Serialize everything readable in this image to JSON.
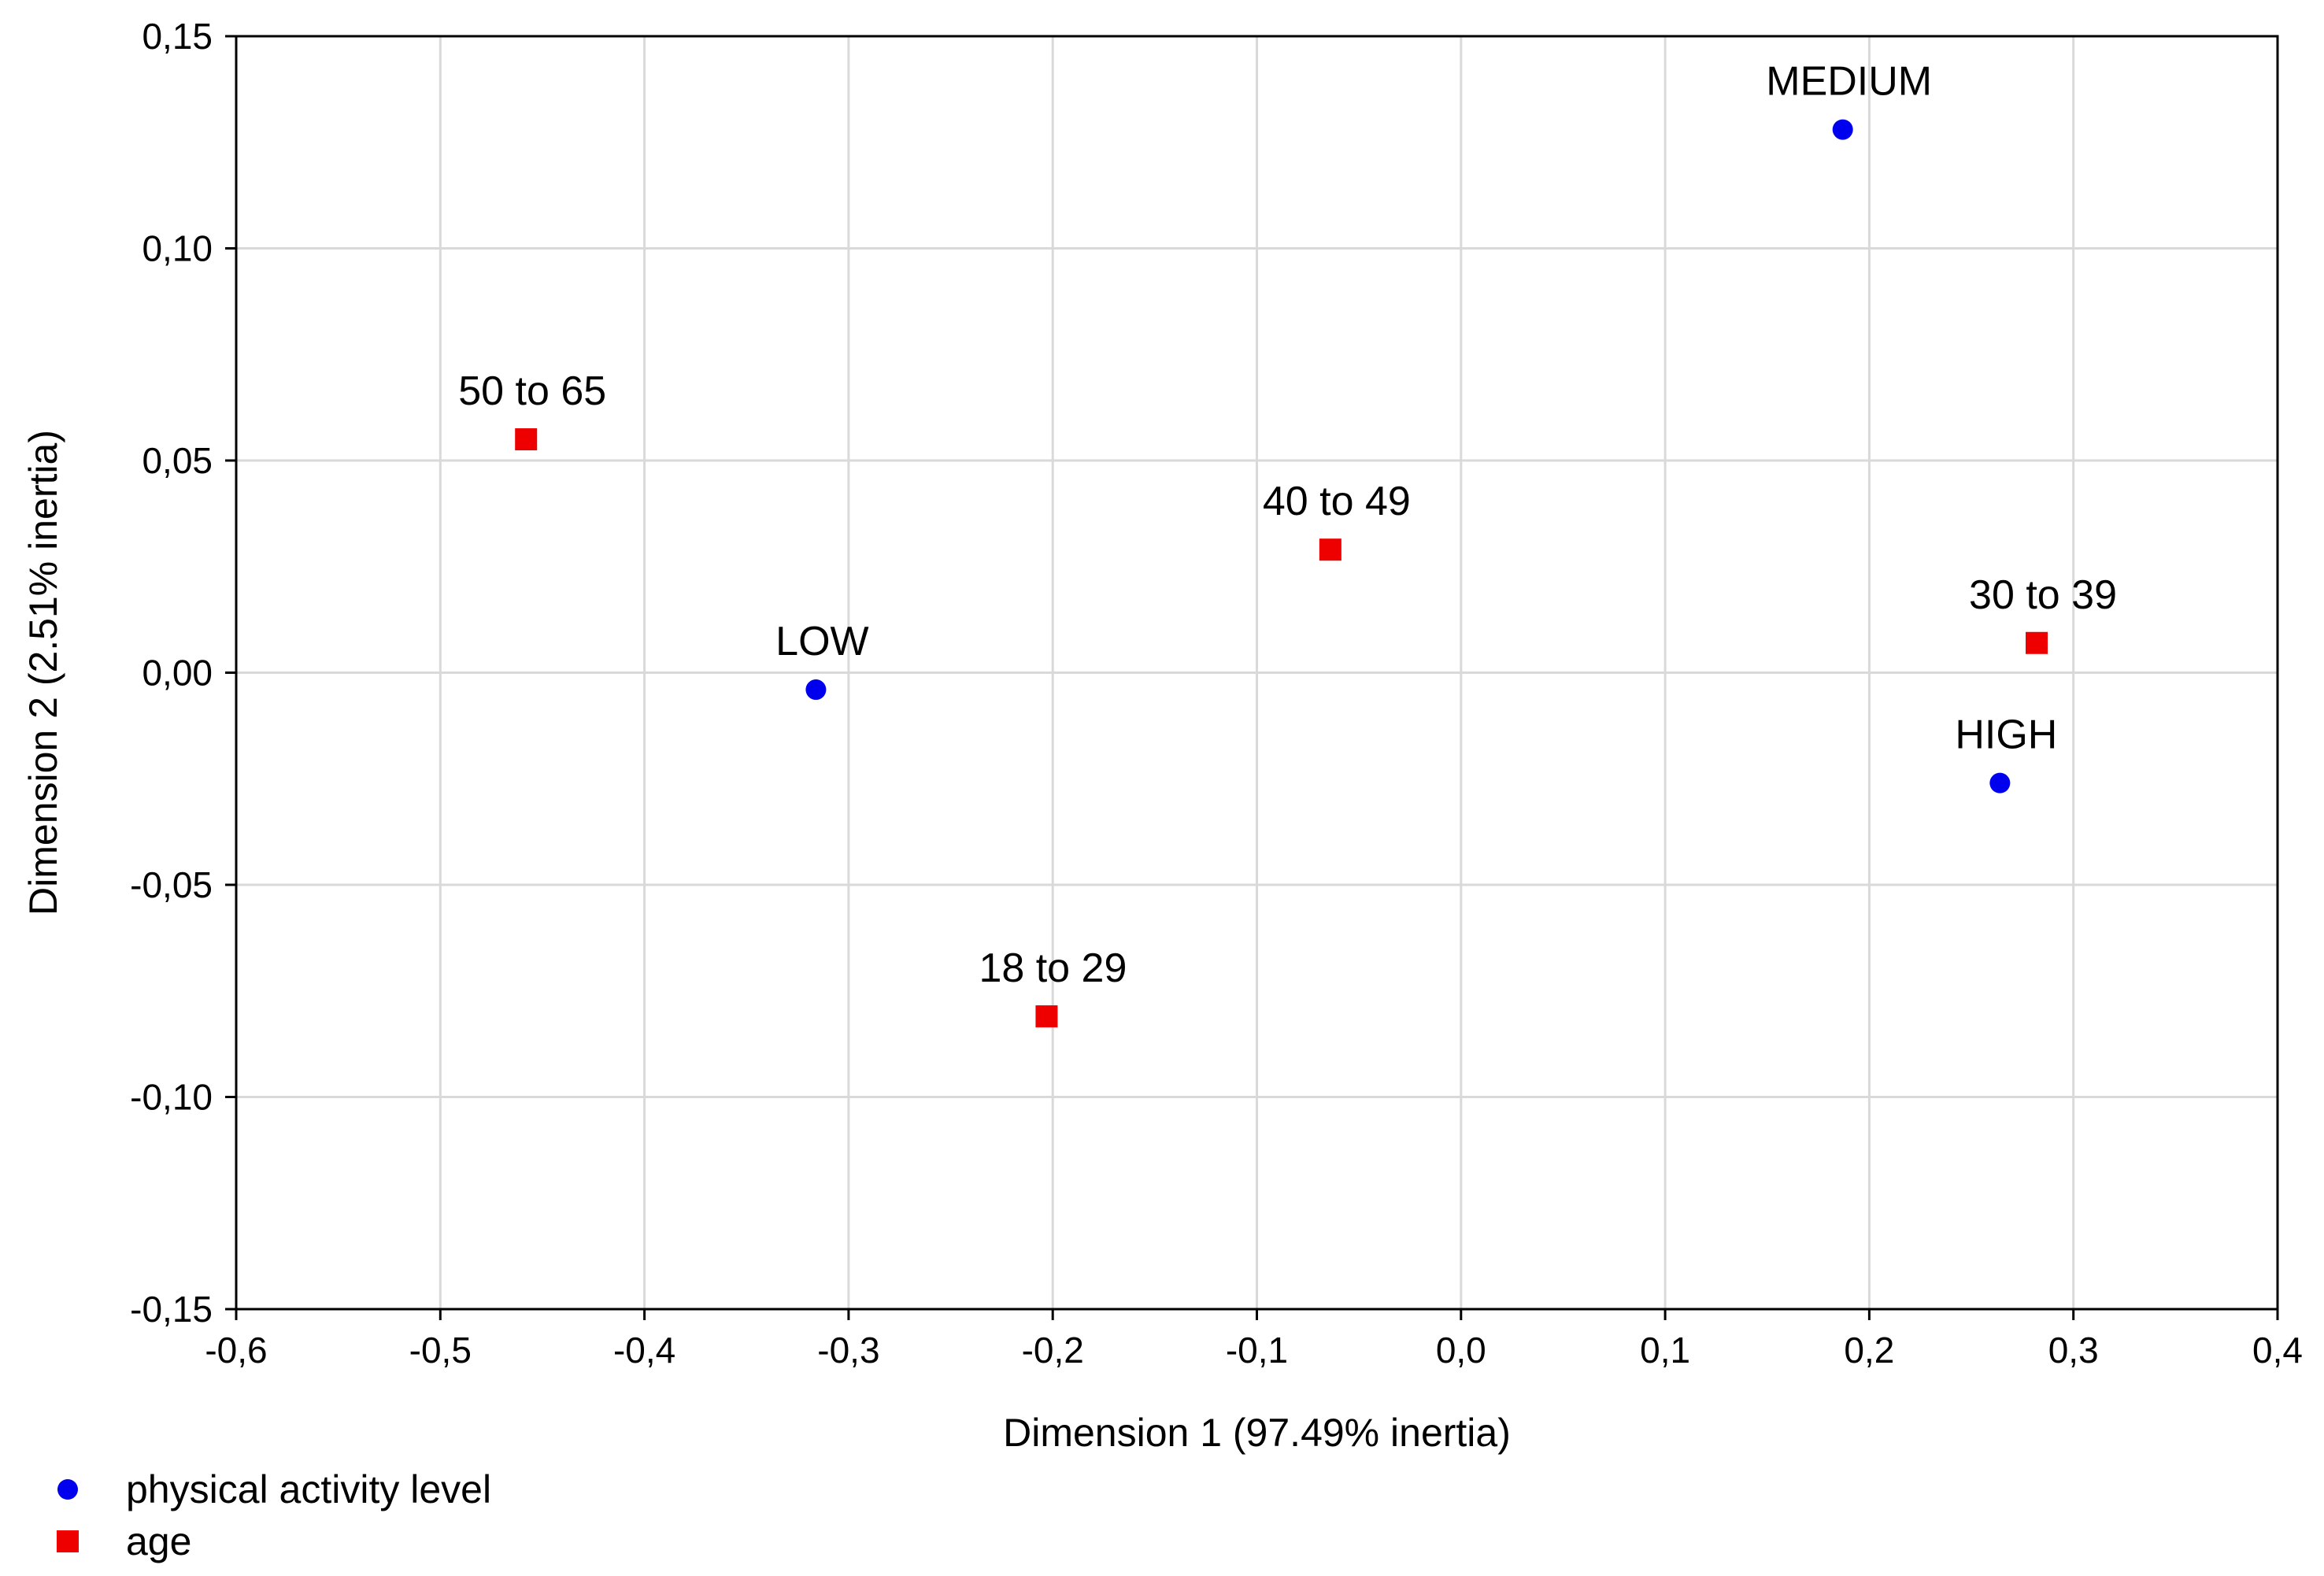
{
  "chart_data": {
    "type": "scatter",
    "title": "",
    "xlabel": "Dimension 1 (97.49% inertia)",
    "ylabel": "Dimension 2 (2.51% inertia)",
    "xlim": [
      -0.6,
      0.4
    ],
    "ylim": [
      -0.15,
      0.15
    ],
    "grid": true,
    "legend_position": "bottom-left",
    "x_ticks": [
      -0.6,
      -0.5,
      -0.4,
      -0.3,
      -0.2,
      -0.1,
      0.0,
      0.1,
      0.2,
      0.3,
      0.4
    ],
    "x_tick_labels": [
      "-0,6",
      "-0,5",
      "-0,4",
      "-0,3",
      "-0,2",
      "-0,1",
      "0,0",
      "0,1",
      "0,2",
      "0,3",
      "0,4"
    ],
    "y_ticks": [
      0.15,
      0.1,
      0.05,
      0.0,
      -0.05,
      -0.1,
      -0.15
    ],
    "y_tick_labels": [
      "0,15",
      "0,10",
      "0,05",
      "0,00",
      "-0,05",
      "-0,10",
      "-0,15"
    ],
    "series": [
      {
        "name": "physical activity level",
        "marker": "circle",
        "color": "#0000ee",
        "points": [
          {
            "label": "MEDIUM",
            "x": 0.187,
            "y": 0.128
          },
          {
            "label": "LOW",
            "x": -0.316,
            "y": -0.004
          },
          {
            "label": "HIGH",
            "x": 0.264,
            "y": -0.026
          }
        ]
      },
      {
        "name": "age",
        "marker": "square",
        "color": "#ee0000",
        "points": [
          {
            "label": "50 to 65",
            "x": -0.458,
            "y": 0.055
          },
          {
            "label": "40 to 49",
            "x": -0.064,
            "y": 0.029
          },
          {
            "label": "30 to 39",
            "x": 0.282,
            "y": 0.007
          },
          {
            "label": "18 to 29",
            "x": -0.203,
            "y": -0.081
          }
        ]
      }
    ]
  }
}
